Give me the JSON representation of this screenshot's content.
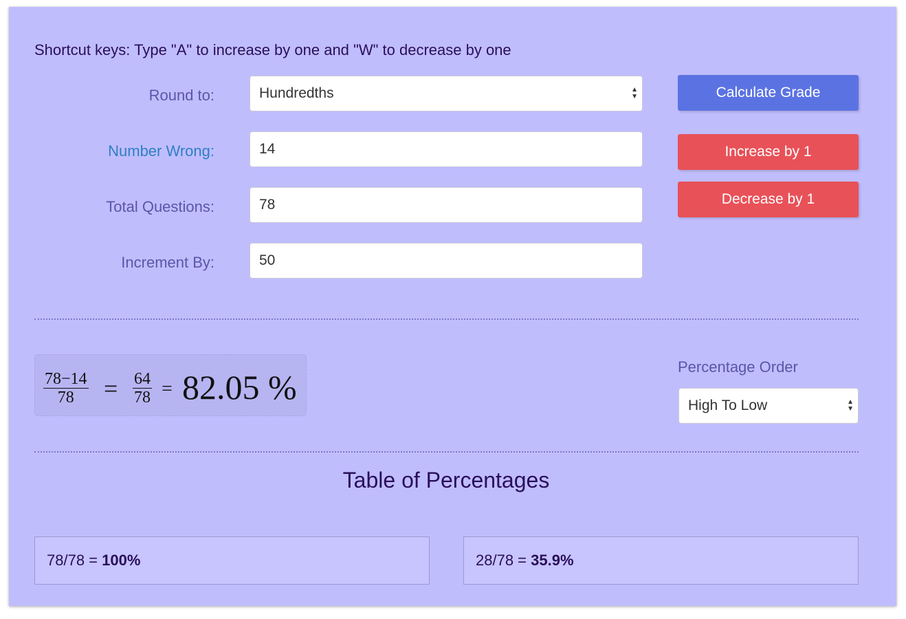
{
  "shortcut_text": "Shortcut keys: Type \"A\" to increase by one and \"W\" to decrease by one",
  "form": {
    "round_label": "Round to:",
    "round_value": "Hundredths",
    "wrong_label": "Number Wrong:",
    "wrong_value": "14",
    "total_label": "Total Questions:",
    "total_value": "78",
    "increment_label": "Increment By:",
    "increment_value": "50"
  },
  "buttons": {
    "calculate": "Calculate Grade",
    "increase": "Increase by 1",
    "decrease": "Decrease by 1"
  },
  "formula": {
    "num1": "78−14",
    "den1": "78",
    "eq1": "=",
    "num2": "64",
    "den2": "78",
    "eq2": "=",
    "result": "82.05 %"
  },
  "order": {
    "label": "Percentage Order",
    "value": "High To Low"
  },
  "table": {
    "title": "Table of Percentages",
    "cells": [
      {
        "fraction": "78/78 = ",
        "percent": "100%"
      },
      {
        "fraction": "28/78 = ",
        "percent": "35.9%"
      }
    ]
  },
  "colors": {
    "background": "#c0bdfd",
    "calculate": "#5b73e2",
    "increase_decrease": "#e85158"
  }
}
